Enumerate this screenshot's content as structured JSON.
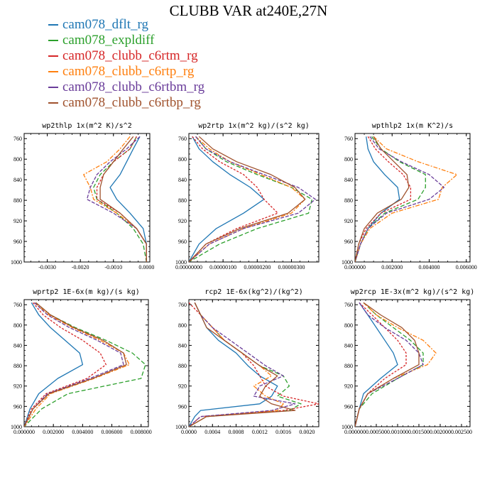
{
  "title": "CLUBB VAR at240E,27N",
  "legend": [
    {
      "name": "cam078_dflt_rg",
      "color": "#1f77b4"
    },
    {
      "name": "cam078_expldiff",
      "color": "#2ca02c"
    },
    {
      "name": "cam078_clubb_c6rtm_rg",
      "color": "#d62728"
    },
    {
      "name": "cam078_clubb_c6rtp_rg",
      "color": "#ff7f0e"
    },
    {
      "name": "cam078_clubb_c6rtbm_rg",
      "color": "#6a3d9a"
    },
    {
      "name": "cam078_clubb_c6rtbp_rg",
      "color": "#a0522d"
    }
  ],
  "chart_data": [
    {
      "type": "line",
      "title": "wp2thlp  1x(m^2 K)/s^2",
      "xlim": [
        -0.0037,
        0.0001
      ],
      "ylim": [
        1000,
        750
      ],
      "xticks": [
        -0.003,
        -0.002,
        -0.001,
        0.0
      ],
      "xtick_labels": [
        "-0.0030",
        "-0.0020",
        "-0.0010",
        "0.0000"
      ],
      "yticks": [
        760,
        800,
        840,
        880,
        920,
        960,
        1000
      ],
      "ytick_labels": [
        "760",
        "800",
        "840",
        "880",
        "920",
        "960",
        "1000"
      ],
      "y": [
        756,
        780,
        805,
        830,
        855,
        878,
        905,
        935,
        965,
        1000
      ],
      "series": [
        {
          "name": "cam078_dflt_rg",
          "values": [
            -0.0002,
            -0.0004,
            -0.0006,
            -0.0008,
            -0.0011,
            -0.0009,
            -0.0005,
            -0.0001,
            0.0,
            0.0
          ]
        },
        {
          "name": "cam078_expldiff",
          "values": [
            -0.0003,
            -0.0005,
            -0.001,
            -0.0014,
            -0.0016,
            -0.0015,
            -0.0009,
            -0.0004,
            -0.0001,
            0.0
          ]
        },
        {
          "name": "cam078_clubb_c6rtm_rg",
          "values": [
            -0.0003,
            -0.0005,
            -0.001,
            -0.0013,
            -0.0015,
            -0.0015,
            -0.0008,
            -0.0003,
            0.0,
            0.0
          ]
        },
        {
          "name": "cam078_clubb_c6rtp_rg",
          "values": [
            -0.0005,
            -0.0008,
            -0.0012,
            -0.0019,
            -0.0017,
            -0.0016,
            -0.0009,
            -0.0003,
            0.0,
            0.0
          ]
        },
        {
          "name": "cam078_clubb_c6rtbm_rg",
          "values": [
            -0.0002,
            -0.0006,
            -0.0011,
            -0.0015,
            -0.0017,
            -0.0018,
            -0.001,
            -0.0003,
            0.0,
            0.0
          ]
        },
        {
          "name": "cam078_clubb_c6rtbp_rg",
          "values": [
            -0.0004,
            -0.0007,
            -0.001,
            -0.0013,
            -0.0014,
            -0.0014,
            -0.0008,
            -0.0003,
            0.0,
            0.0
          ]
        }
      ]
    },
    {
      "type": "line",
      "title": "wp2rtp  1x(m^2 kg)/(s^2 kg)",
      "xlim": [
        0.0,
        3.8e-06
      ],
      "ylim": [
        1000,
        750
      ],
      "xticks": [
        0.0,
        1e-06,
        2e-06,
        3e-06
      ],
      "xtick_labels": [
        "0.00000000",
        "0.00000100",
        "0.00000200",
        "0.00000300"
      ],
      "yticks": [
        760,
        800,
        840,
        880,
        920,
        960,
        1000
      ],
      "ytick_labels": [
        "760",
        "800",
        "840",
        "880",
        "920",
        "960",
        "1000"
      ],
      "y": [
        756,
        780,
        805,
        830,
        855,
        878,
        905,
        935,
        965,
        1000
      ],
      "series": [
        {
          "name": "cam078_dflt_rg",
          "values": [
            1e-07,
            3e-07,
            7e-07,
            1.2e-06,
            1.8e-06,
            2.2e-06,
            1.6e-06,
            8e-07,
            3e-07,
            0.0
          ]
        },
        {
          "name": "cam078_expldiff",
          "values": [
            2e-07,
            5e-07,
            1.1e-06,
            2e-06,
            3e-06,
            3.6e-06,
            3.5e-06,
            2e-06,
            9e-07,
            0.0
          ]
        },
        {
          "name": "cam078_clubb_c6rtm_rg",
          "values": [
            1e-07,
            4e-07,
            9e-07,
            1.6e-06,
            2e-06,
            2.2e-06,
            2.6e-06,
            1.4e-06,
            5e-07,
            0.0
          ]
        },
        {
          "name": "cam078_clubb_c6rtp_rg",
          "values": [
            2e-07,
            6e-07,
            1.2e-06,
            2.1e-06,
            3e-06,
            3.4e-06,
            3e-06,
            1.6e-06,
            6e-07,
            0.0
          ]
        },
        {
          "name": "cam078_clubb_c6rtbm_rg",
          "values": [
            2e-07,
            5e-07,
            1.2e-06,
            2.2e-06,
            3.2e-06,
            3.7e-06,
            3.2e-06,
            1.6e-06,
            6e-07,
            0.0
          ]
        },
        {
          "name": "cam078_clubb_c6rtbp_rg",
          "values": [
            3e-07,
            7e-07,
            1.4e-06,
            2.4e-06,
            3.1e-06,
            3.4e-06,
            2.9e-06,
            1.5e-06,
            5e-07,
            0.0
          ]
        }
      ]
    },
    {
      "type": "line",
      "title": "wpthlp2  1x(m K^2)/s",
      "xlim": [
        0.0,
        0.0062
      ],
      "ylim": [
        1000,
        750
      ],
      "xticks": [
        0.0,
        0.002,
        0.004,
        0.006
      ],
      "xtick_labels": [
        "0.000000",
        "0.002000",
        "0.004000",
        "0.006000"
      ],
      "yticks": [
        760,
        800,
        840,
        880,
        920,
        960,
        1000
      ],
      "ytick_labels": [
        "760",
        "800",
        "840",
        "880",
        "920",
        "960",
        "1000"
      ],
      "y": [
        756,
        780,
        805,
        830,
        855,
        878,
        905,
        935,
        965,
        1000
      ],
      "series": [
        {
          "name": "cam078_dflt_rg",
          "values": [
            0.0006,
            0.0007,
            0.001,
            0.0016,
            0.0023,
            0.0024,
            0.0014,
            0.0007,
            0.0003,
            0.0
          ]
        },
        {
          "name": "cam078_expldiff",
          "values": [
            0.0009,
            0.0014,
            0.0024,
            0.0038,
            0.0038,
            0.0034,
            0.0016,
            0.0007,
            0.0003,
            0.0
          ]
        },
        {
          "name": "cam078_clubb_c6rtm_rg",
          "values": [
            0.0007,
            0.0011,
            0.0018,
            0.0026,
            0.003,
            0.003,
            0.0014,
            0.0006,
            0.0002,
            0.0
          ]
        },
        {
          "name": "cam078_clubb_c6rtp_rg",
          "values": [
            0.001,
            0.0017,
            0.0034,
            0.0055,
            0.0047,
            0.0045,
            0.002,
            0.0008,
            0.0003,
            0.0
          ]
        },
        {
          "name": "cam078_clubb_c6rtbm_rg",
          "values": [
            0.0008,
            0.0013,
            0.0025,
            0.004,
            0.0048,
            0.004,
            0.0017,
            0.0007,
            0.0003,
            0.0
          ]
        },
        {
          "name": "cam078_clubb_c6rtbp_rg",
          "values": [
            0.001,
            0.0014,
            0.0021,
            0.0028,
            0.0029,
            0.0025,
            0.0012,
            0.0005,
            0.0002,
            0.0
          ]
        }
      ]
    },
    {
      "type": "line",
      "title": "wprtp2  1E-6x(m kg)/(s kg)",
      "xlim": [
        0.0,
        0.0085
      ],
      "ylim": [
        1000,
        750
      ],
      "xticks": [
        0.0,
        0.002,
        0.004,
        0.006,
        0.008
      ],
      "xtick_labels": [
        "0.000000",
        "0.002000",
        "0.004000",
        "0.006000",
        "0.008000"
      ],
      "yticks": [
        760,
        800,
        840,
        880,
        920,
        960,
        1000
      ],
      "ytick_labels": [
        "760",
        "800",
        "840",
        "880",
        "920",
        "960",
        "1000"
      ],
      "y": [
        756,
        780,
        805,
        830,
        855,
        878,
        905,
        935,
        965,
        1000
      ],
      "series": [
        {
          "name": "cam078_dflt_rg",
          "values": [
            0.0005,
            0.001,
            0.0018,
            0.0028,
            0.0038,
            0.004,
            0.0023,
            0.001,
            0.0004,
            0.0
          ]
        },
        {
          "name": "cam078_expldiff",
          "values": [
            0.0008,
            0.0018,
            0.0035,
            0.0056,
            0.0074,
            0.0083,
            0.008,
            0.003,
            0.0012,
            0.0
          ]
        },
        {
          "name": "cam078_clubb_c6rtm_rg",
          "values": [
            0.0006,
            0.0013,
            0.0025,
            0.004,
            0.0052,
            0.0056,
            0.0043,
            0.0015,
            0.0005,
            0.0
          ]
        },
        {
          "name": "cam078_clubb_c6rtp_rg",
          "values": [
            0.0007,
            0.0017,
            0.0033,
            0.0052,
            0.0068,
            0.0072,
            0.0048,
            0.0018,
            0.0008,
            0.0
          ]
        },
        {
          "name": "cam078_clubb_c6rtbm_rg",
          "values": [
            0.0007,
            0.0016,
            0.0031,
            0.005,
            0.0066,
            0.0068,
            0.0045,
            0.0016,
            0.0006,
            0.0
          ]
        },
        {
          "name": "cam078_clubb_c6rtbp_rg",
          "values": [
            0.0008,
            0.0018,
            0.0034,
            0.0054,
            0.0068,
            0.007,
            0.0047,
            0.0017,
            0.0006,
            0.0
          ]
        }
      ]
    },
    {
      "type": "line",
      "title": "rcp2  1E-6x(kg^2)/(kg^2)",
      "xlim": [
        0.0,
        0.0022
      ],
      "ylim": [
        1000,
        750
      ],
      "xticks": [
        0.0,
        0.0004,
        0.0008,
        0.0012,
        0.0016,
        0.002
      ],
      "xtick_labels": [
        "0.0000",
        "0.0004",
        "0.0008",
        "0.0012",
        "0.0016",
        "0.0020"
      ],
      "yticks": [
        760,
        800,
        840,
        880,
        920,
        960,
        1000
      ],
      "ytick_labels": [
        "760",
        "800",
        "840",
        "880",
        "920",
        "960",
        "1000"
      ],
      "y": [
        756,
        780,
        805,
        830,
        855,
        880,
        900,
        920,
        940,
        955,
        968,
        980,
        1000
      ],
      "series": [
        {
          "name": "cam078_dflt_rg",
          "values": [
            0.0001,
            0.0002,
            0.0003,
            0.0005,
            0.0008,
            0.001,
            0.0012,
            0.0015,
            0.0014,
            0.0012,
            0.0002,
            0.0001,
            0.0
          ]
        },
        {
          "name": "cam078_expldiff",
          "values": [
            0.0001,
            0.0002,
            0.0004,
            0.0006,
            0.0009,
            0.0012,
            0.0016,
            0.0017,
            0.0015,
            0.0019,
            0.0017,
            0.0003,
            0.0
          ]
        },
        {
          "name": "cam078_clubb_c6rtm_rg",
          "values": [
            0.0,
            0.0002,
            0.0004,
            0.0006,
            0.0009,
            0.0011,
            0.0012,
            0.0013,
            0.0016,
            0.0022,
            0.0016,
            0.0002,
            0.0
          ]
        },
        {
          "name": "cam078_clubb_c6rtp_rg",
          "values": [
            0.0001,
            0.0002,
            0.0004,
            0.0006,
            0.0009,
            0.0012,
            0.0014,
            0.0011,
            0.0013,
            0.0016,
            0.0015,
            0.0003,
            0.0
          ]
        },
        {
          "name": "cam078_clubb_c6rtbm_rg",
          "values": [
            0.0001,
            0.0002,
            0.0004,
            0.0007,
            0.001,
            0.0013,
            0.0016,
            0.0012,
            0.0011,
            0.0018,
            0.0014,
            0.0002,
            0.0
          ]
        },
        {
          "name": "cam078_clubb_c6rtbp_rg",
          "values": [
            0.0001,
            0.0002,
            0.0003,
            0.0006,
            0.0009,
            0.0012,
            0.0015,
            0.0013,
            0.0012,
            0.0014,
            0.0018,
            0.0003,
            0.0
          ]
        }
      ]
    },
    {
      "type": "line",
      "title": "wp2rcp  1E-3x(m^2 kg)/(s^2 kg)",
      "xlim": [
        0.0,
        0.0027
      ],
      "ylim": [
        1000,
        750
      ],
      "xticks": [
        0.0,
        0.0005,
        0.001,
        0.0015,
        0.002,
        0.0025
      ],
      "xtick_labels": [
        "0.000000",
        "0.000500",
        "0.001000",
        "0.001500",
        "0.002000",
        "0.002500"
      ],
      "yticks": [
        760,
        800,
        840,
        880,
        920,
        960,
        1000
      ],
      "ytick_labels": [
        "760",
        "800",
        "840",
        "880",
        "920",
        "960",
        "1000"
      ],
      "y": [
        756,
        780,
        805,
        830,
        855,
        878,
        905,
        935,
        965,
        1000
      ],
      "series": [
        {
          "name": "cam078_dflt_rg",
          "values": [
            0.0001,
            0.0003,
            0.0005,
            0.0007,
            0.0009,
            0.001,
            0.0006,
            0.0002,
            0.0001,
            0.0
          ]
        },
        {
          "name": "cam078_expldiff",
          "values": [
            0.0002,
            0.0005,
            0.0009,
            0.0013,
            0.0016,
            0.0016,
            0.001,
            0.0004,
            0.0001,
            0.0
          ]
        },
        {
          "name": "cam078_clubb_c6rtm_rg",
          "values": [
            0.0001,
            0.0004,
            0.0007,
            0.001,
            0.0012,
            0.0012,
            0.0007,
            0.0003,
            0.0001,
            0.0
          ]
        },
        {
          "name": "cam078_clubb_c6rtp_rg",
          "values": [
            0.0002,
            0.0005,
            0.001,
            0.0016,
            0.0019,
            0.0017,
            0.0009,
            0.0003,
            0.0001,
            0.0
          ]
        },
        {
          "name": "cam078_clubb_c6rtbm_rg",
          "values": [
            0.0001,
            0.0003,
            0.0007,
            0.0012,
            0.0015,
            0.0016,
            0.001,
            0.0003,
            0.0001,
            0.0
          ]
        },
        {
          "name": "cam078_clubb_c6rtbp_rg",
          "values": [
            0.0002,
            0.0006,
            0.0011,
            0.0014,
            0.0015,
            0.0015,
            0.0009,
            0.0003,
            0.0001,
            0.0
          ]
        }
      ]
    }
  ]
}
